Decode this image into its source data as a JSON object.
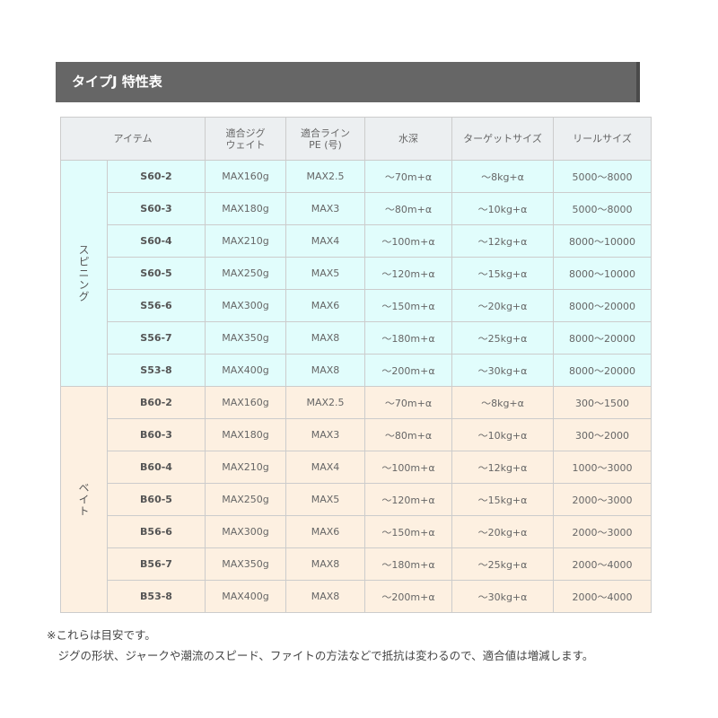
{
  "title": "タイプJ 特性表",
  "headers": [
    "アイテム",
    "適合ジグ\nウェイト",
    "適合ライン\nPE (号)",
    "水深",
    "ターゲットサイズ",
    "リールサイズ"
  ],
  "groups": [
    {
      "label": "スピニング",
      "rows": [
        [
          "S60-2",
          "MAX160g",
          "MAX2.5",
          "～70m+α",
          "～8kg+α",
          "5000～8000"
        ],
        [
          "S60-3",
          "MAX180g",
          "MAX3",
          "～80m+α",
          "～10kg+α",
          "5000～8000"
        ],
        [
          "S60-4",
          "MAX210g",
          "MAX4",
          "～100m+α",
          "～12kg+α",
          "8000～10000"
        ],
        [
          "S60-5",
          "MAX250g",
          "MAX5",
          "～120m+α",
          "～15kg+α",
          "8000～10000"
        ],
        [
          "S56-6",
          "MAX300g",
          "MAX6",
          "～150m+α",
          "～20kg+α",
          "8000～20000"
        ],
        [
          "S56-7",
          "MAX350g",
          "MAX8",
          "～180m+α",
          "～25kg+α",
          "8000～20000"
        ],
        [
          "S53-8",
          "MAX400g",
          "MAX8",
          "～200m+α",
          "～30kg+α",
          "8000～20000"
        ]
      ]
    },
    {
      "label": "ベイト",
      "rows": [
        [
          "B60-2",
          "MAX160g",
          "MAX2.5",
          "～70m+α",
          "～8kg+α",
          "300～1500"
        ],
        [
          "B60-3",
          "MAX180g",
          "MAX3",
          "～80m+α",
          "～10kg+α",
          "300～2000"
        ],
        [
          "B60-4",
          "MAX210g",
          "MAX4",
          "～100m+α",
          "～12kg+α",
          "1000～3000"
        ],
        [
          "B60-5",
          "MAX250g",
          "MAX5",
          "～120m+α",
          "～15kg+α",
          "2000～3000"
        ],
        [
          "B56-6",
          "MAX300g",
          "MAX6",
          "～150m+α",
          "～20kg+α",
          "2000～3000"
        ],
        [
          "B56-7",
          "MAX350g",
          "MAX8",
          "～180m+α",
          "～25kg+α",
          "2000～4000"
        ],
        [
          "B53-8",
          "MAX400g",
          "MAX8",
          "～200m+α",
          "～30kg+α",
          "2000～4000"
        ]
      ]
    }
  ],
  "notes": [
    "※これらは目安です。",
    "　ジグの形状、ジャークや潮流のスピード、ファイトの方法などで抵抗は変わるので、適合値は増減します。"
  ],
  "colors": {
    "title_bg": "#666666",
    "header_bg": "#eceff1",
    "spinning_bg": "#e1fdfc",
    "bait_bg": "#fdf0e1"
  }
}
